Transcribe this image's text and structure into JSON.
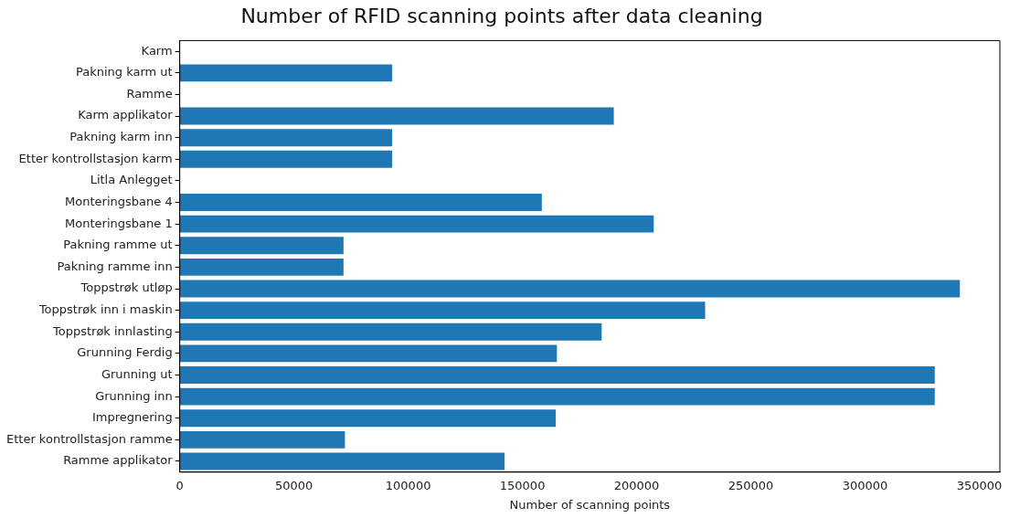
{
  "chart_data": {
    "type": "bar",
    "orientation": "horizontal",
    "title": "Number of RFID scanning points after data cleaning",
    "xlabel": "Number of scanning points",
    "categories": [
      "Karm",
      "Pakning karm ut",
      "Ramme",
      "Karm applikator",
      "Pakning karm inn",
      "Etter kontrollstasjon karm",
      "Litla Anlegget",
      "Monteringsbane 4",
      "Monteringsbane 1",
      "Pakning ramme ut",
      "Pakning ramme inn",
      "Toppstrøk utløp",
      "Toppstrøk inn i maskin",
      "Toppstrøk innlasting",
      "Grunning Ferdig",
      "Grunning ut",
      "Grunning inn",
      "Impregnering",
      "Etter kontrollstasjon ramme",
      "Ramme applikator"
    ],
    "values": [
      0,
      93000,
      0,
      190000,
      93000,
      93000,
      0,
      158500,
      207500,
      71700,
      71700,
      341500,
      230000,
      184700,
      165100,
      330500,
      330500,
      164600,
      72300,
      142200
    ],
    "color": "#1f77b4",
    "xlim": [
      0,
      359000
    ],
    "xticks": [
      0,
      50000,
      100000,
      150000,
      200000,
      250000,
      300000,
      350000
    ],
    "grid": false,
    "legend": false
  }
}
